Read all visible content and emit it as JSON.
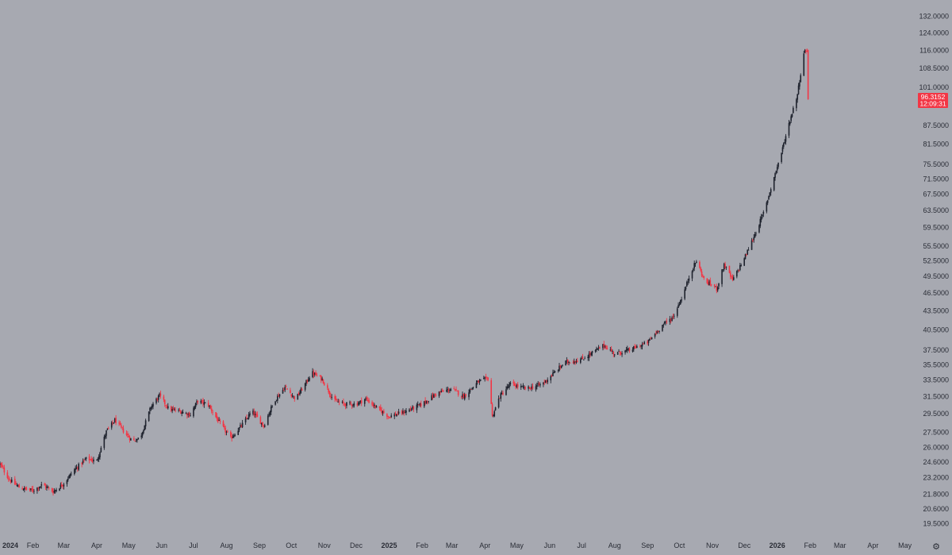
{
  "chart_data": {
    "type": "candlestick",
    "title": "",
    "scale": "log",
    "grid": false,
    "colors": {
      "background": "#a7a9b1",
      "up": "#1e222d",
      "down": "#f23645",
      "label_text": "#2a2d36",
      "price_tag": "#f23645",
      "price_tag_text": "#ffffff"
    },
    "y_ticks": [
      "132.0000",
      "124.0000",
      "116.0000",
      "108.5000",
      "101.0000",
      "87.5000",
      "81.5000",
      "75.5000",
      "71.5000",
      "67.5000",
      "63.5000",
      "59.5000",
      "55.5000",
      "52.5000",
      "49.5000",
      "46.5000",
      "43.5000",
      "40.5000",
      "37.5000",
      "35.5000",
      "33.5000",
      "31.5000",
      "29.5000",
      "27.5000",
      "26.0000",
      "24.6000",
      "23.2000",
      "21.8000",
      "20.6000",
      "19.5000"
    ],
    "x_ticks": [
      {
        "label": "2024",
        "date": "2024-01-01",
        "bold": true
      },
      {
        "label": "Feb",
        "date": "2024-02-01"
      },
      {
        "label": "Mar",
        "date": "2024-03-01"
      },
      {
        "label": "Apr",
        "date": "2024-04-01"
      },
      {
        "label": "May",
        "date": "2024-05-01"
      },
      {
        "label": "Jun",
        "date": "2024-06-01"
      },
      {
        "label": "Jul",
        "date": "2024-07-01"
      },
      {
        "label": "Aug",
        "date": "2024-08-01"
      },
      {
        "label": "Sep",
        "date": "2024-09-01"
      },
      {
        "label": "Oct",
        "date": "2024-10-01"
      },
      {
        "label": "Nov",
        "date": "2024-11-01"
      },
      {
        "label": "Dec",
        "date": "2024-12-01"
      },
      {
        "label": "2025",
        "date": "2025-01-01",
        "bold": true
      },
      {
        "label": "Feb",
        "date": "2025-02-01"
      },
      {
        "label": "Mar",
        "date": "2025-03-01"
      },
      {
        "label": "Apr",
        "date": "2025-04-01"
      },
      {
        "label": "May",
        "date": "2025-05-01"
      },
      {
        "label": "Jun",
        "date": "2025-06-01"
      },
      {
        "label": "Jul",
        "date": "2025-07-01"
      },
      {
        "label": "Aug",
        "date": "2025-08-01"
      },
      {
        "label": "Sep",
        "date": "2025-09-01"
      },
      {
        "label": "Oct",
        "date": "2025-10-01"
      },
      {
        "label": "Nov",
        "date": "2025-11-01"
      },
      {
        "label": "Dec",
        "date": "2025-12-01"
      },
      {
        "label": "2026",
        "date": "2026-01-01",
        "bold": true
      },
      {
        "label": "Feb",
        "date": "2026-02-01"
      },
      {
        "label": "Mar",
        "date": "2026-03-01"
      },
      {
        "label": "Apr",
        "date": "2026-04-01"
      },
      {
        "label": "May",
        "date": "2026-05-01"
      }
    ],
    "xlim": [
      "2024-01-01",
      "2026-05-14"
    ],
    "ylim": [
      18.9,
      137
    ],
    "close_path": [
      [
        "2024-01-01",
        24.4
      ],
      [
        "2024-01-10",
        23.0
      ],
      [
        "2024-01-20",
        22.3
      ],
      [
        "2024-02-01",
        22.1
      ],
      [
        "2024-02-10",
        22.6
      ],
      [
        "2024-02-20",
        22.0
      ],
      [
        "2024-03-01",
        22.7
      ],
      [
        "2024-03-10",
        23.8
      ],
      [
        "2024-03-22",
        24.9
      ],
      [
        "2024-04-01",
        24.7
      ],
      [
        "2024-04-10",
        27.6
      ],
      [
        "2024-04-18",
        28.8
      ],
      [
        "2024-04-28",
        27.4
      ],
      [
        "2024-05-05",
        26.6
      ],
      [
        "2024-05-12",
        27.0
      ],
      [
        "2024-05-22",
        30.3
      ],
      [
        "2024-05-30",
        31.6
      ],
      [
        "2024-06-08",
        30.0
      ],
      [
        "2024-06-18",
        29.8
      ],
      [
        "2024-06-28",
        29.4
      ],
      [
        "2024-07-05",
        31.0
      ],
      [
        "2024-07-15",
        30.5
      ],
      [
        "2024-07-25",
        28.6
      ],
      [
        "2024-08-05",
        26.9
      ],
      [
        "2024-08-15",
        28.2
      ],
      [
        "2024-08-25",
        29.8
      ],
      [
        "2024-09-05",
        28.2
      ],
      [
        "2024-09-15",
        31.0
      ],
      [
        "2024-09-25",
        32.6
      ],
      [
        "2024-10-05",
        31.2
      ],
      [
        "2024-10-15",
        33.2
      ],
      [
        "2024-10-20",
        34.5
      ],
      [
        "2024-10-30",
        33.6
      ],
      [
        "2024-11-10",
        31.0
      ],
      [
        "2024-11-20",
        30.6
      ],
      [
        "2024-12-01",
        30.6
      ],
      [
        "2024-12-10",
        31.2
      ],
      [
        "2024-12-20",
        30.2
      ],
      [
        "2025-01-01",
        29.2
      ],
      [
        "2025-01-15",
        29.7
      ],
      [
        "2025-02-01",
        30.6
      ],
      [
        "2025-02-15",
        31.9
      ],
      [
        "2025-03-01",
        32.4
      ],
      [
        "2025-03-12",
        31.5
      ],
      [
        "2025-03-25",
        33.2
      ],
      [
        "2025-04-05",
        33.8
      ],
      [
        "2025-04-08",
        29.2
      ],
      [
        "2025-04-15",
        31.5
      ],
      [
        "2025-04-25",
        33.0
      ],
      [
        "2025-05-10",
        32.4
      ],
      [
        "2025-05-25",
        33.0
      ],
      [
        "2025-06-05",
        34.4
      ],
      [
        "2025-06-15",
        35.8
      ],
      [
        "2025-07-01",
        36.2
      ],
      [
        "2025-07-15",
        37.5
      ],
      [
        "2025-07-22",
        38.2
      ],
      [
        "2025-08-01",
        37.0
      ],
      [
        "2025-08-15",
        37.5
      ],
      [
        "2025-09-01",
        38.6
      ],
      [
        "2025-09-15",
        41.2
      ],
      [
        "2025-09-25",
        42.5
      ],
      [
        "2025-10-05",
        46.5
      ],
      [
        "2025-10-12",
        50.5
      ],
      [
        "2025-10-17",
        52.5
      ],
      [
        "2025-10-25",
        48.5
      ],
      [
        "2025-11-01",
        48.0
      ],
      [
        "2025-11-05",
        47.2
      ],
      [
        "2025-11-12",
        51.8
      ],
      [
        "2025-11-20",
        48.8
      ],
      [
        "2025-12-01",
        53.0
      ],
      [
        "2025-12-10",
        57.5
      ],
      [
        "2025-12-20",
        63.5
      ],
      [
        "2025-12-28",
        71.0
      ],
      [
        "2026-01-05",
        79.0
      ],
      [
        "2026-01-12",
        88.0
      ],
      [
        "2026-01-20",
        98.5
      ],
      [
        "2026-01-26",
        115.0
      ],
      [
        "2026-01-29",
        116.5
      ],
      [
        "2026-01-30",
        96.3
      ]
    ],
    "last_price": "96.3152",
    "last_price_countdown": "12:09:31",
    "settings_glyph": "⚙"
  }
}
